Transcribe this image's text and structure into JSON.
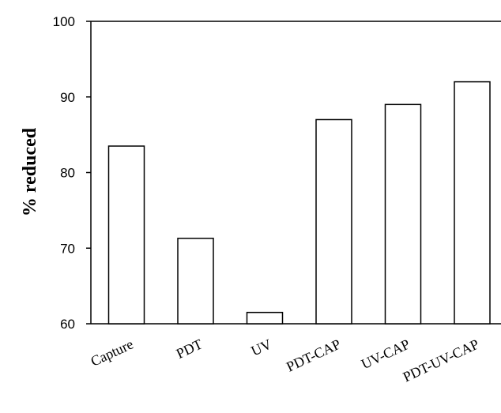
{
  "chart_data": {
    "type": "bar",
    "title": "",
    "xlabel": "",
    "ylabel": "% reduced",
    "ylim": [
      60,
      100
    ],
    "yticks": [
      60,
      70,
      80,
      90,
      100
    ],
    "categories": [
      "Capture",
      "PDT",
      "UV",
      "PDT-CAP",
      "UV-CAP",
      "PDT-UV-CAP"
    ],
    "values": [
      83.5,
      71.3,
      61.5,
      87.0,
      89.0,
      92.0
    ],
    "grid": false,
    "legend": "none",
    "colors": {
      "bar_fill": "#ffffff",
      "bar_stroke": "#000000",
      "axis": "#000000"
    }
  }
}
